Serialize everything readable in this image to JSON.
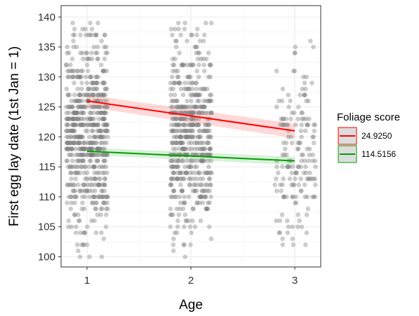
{
  "chart_data": {
    "type": "scatter",
    "xlabel": "Age",
    "ylabel": "First egg lay date (1st Jan = 1)",
    "x_categories": [
      "1",
      "2",
      "3"
    ],
    "xlim": [
      0.75,
      3.25
    ],
    "ylim": [
      98.3,
      141.9
    ],
    "y_ticks": [
      100,
      105,
      110,
      115,
      120,
      125,
      130,
      135,
      140
    ],
    "grid": true,
    "legend_position": "right",
    "point_color": "#808080",
    "point_opacity": 0.4,
    "legend": {
      "title": "Foliage score",
      "items": [
        {
          "label": "24.9250",
          "color": "#ff0000"
        },
        {
          "label": "114.5156",
          "color": "#00a000"
        }
      ]
    },
    "series": [
      {
        "name": "24.9250",
        "x": [
          1,
          3
        ],
        "y": [
          126.0,
          121.0
        ],
        "ci_lower": [
          125.0,
          119.8
        ],
        "ci_upper": [
          127.0,
          122.2
        ],
        "color": "#ff0000"
      },
      {
        "name": "114.5156",
        "x": [
          1,
          3
        ],
        "y": [
          117.6,
          116.0
        ],
        "ci_lower": [
          117.0,
          115.3
        ],
        "ci_upper": [
          118.2,
          116.7
        ],
        "color": "#00a000"
      }
    ],
    "jitter_groups": [
      {
        "age": 1,
        "n": 650,
        "y_min": 100,
        "y_max": 139,
        "center": 121,
        "spread": 8
      },
      {
        "age": 2,
        "n": 560,
        "y_min": 100,
        "y_max": 139,
        "center": 120,
        "spread": 8
      },
      {
        "age": 3,
        "n": 170,
        "y_min": 100,
        "y_max": 136,
        "center": 117,
        "spread": 8
      }
    ]
  }
}
